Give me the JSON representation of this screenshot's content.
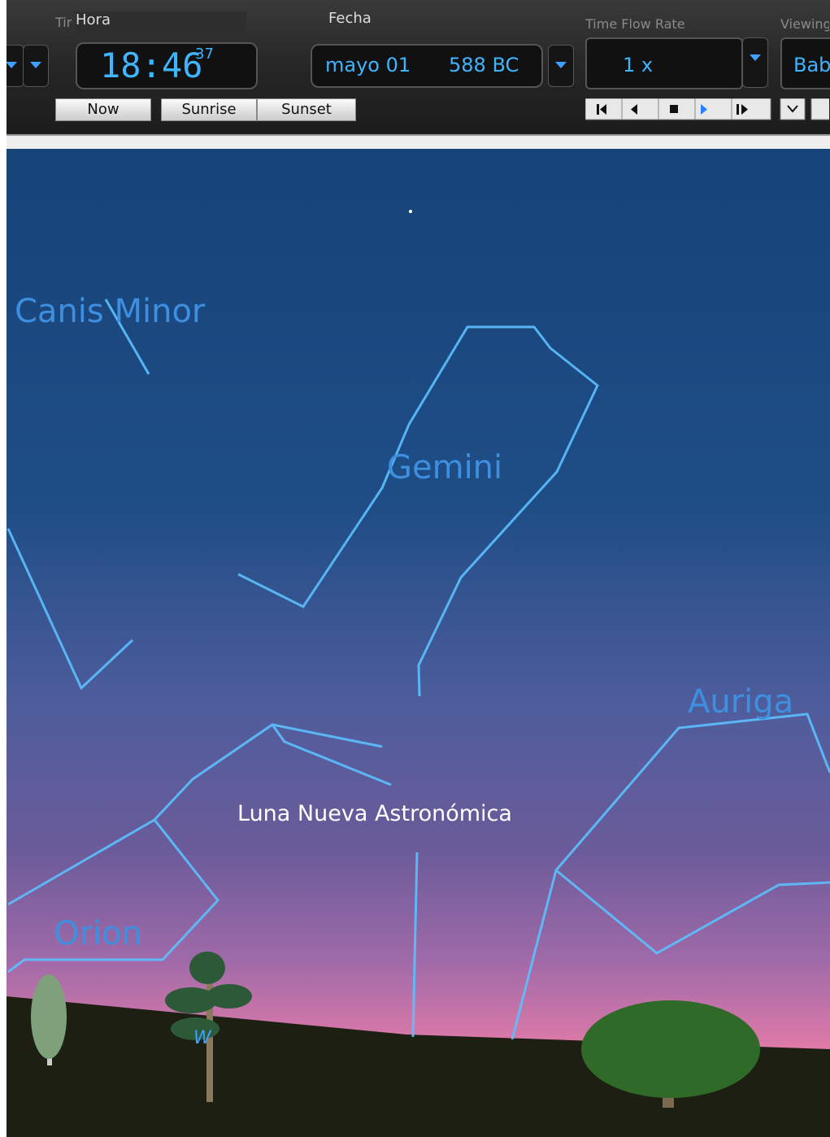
{
  "toolbar": {
    "labels": {
      "time_partial": "Tir",
      "hora": "Hora",
      "fecha": "Fecha",
      "time_flow_rate": "Time Flow Rate",
      "viewing": "Viewing"
    },
    "clock": {
      "time": "18:46",
      "seconds": "37"
    },
    "date": {
      "day": "mayo 01",
      "year": "588 BC"
    },
    "rate": "1 x",
    "location": "Bab",
    "buttons": [
      "Now",
      "Sunrise",
      "Sunset"
    ]
  },
  "sky": {
    "constellations": [
      "Canis Minor",
      "Gemini",
      "Auriga",
      "Orion"
    ],
    "event": "Luna Nueva Astronómica",
    "compass": "W"
  }
}
